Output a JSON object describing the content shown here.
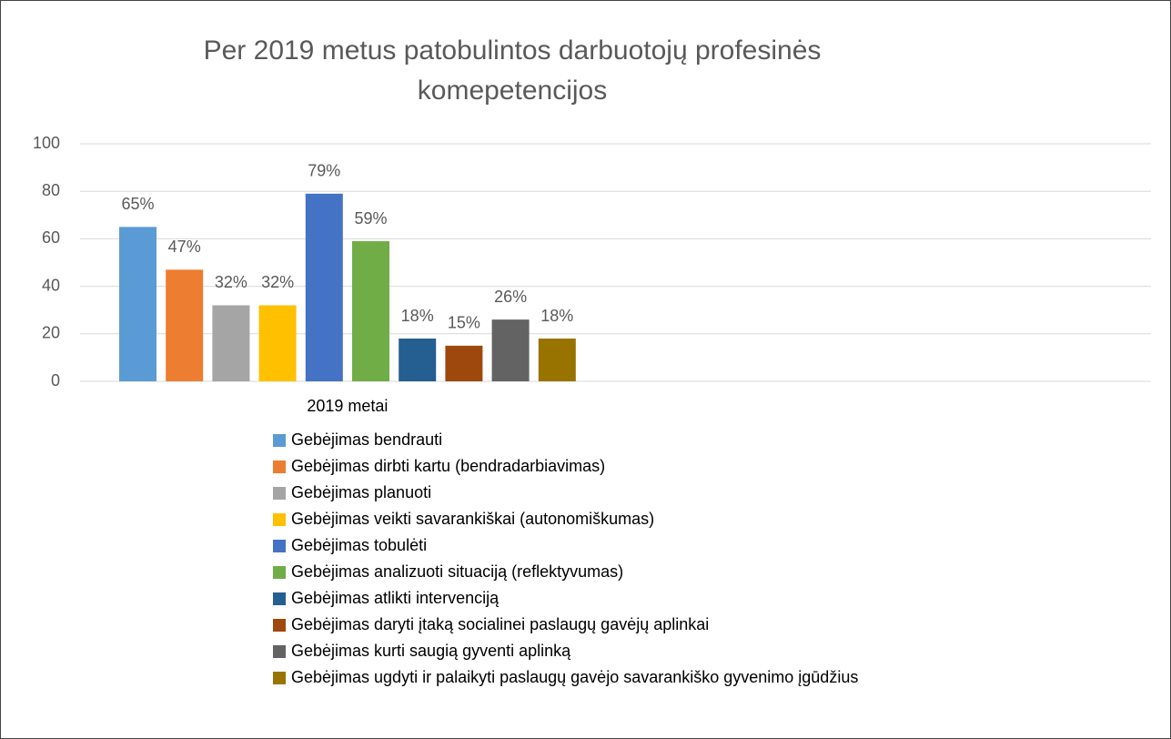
{
  "chart_data": {
    "type": "bar",
    "title": "Per 2019 metus patobulintos darbuotojų profesinės komepetencijos",
    "categories": [
      "2019 metai"
    ],
    "series": [
      {
        "name": "Gebėjimas bendrauti",
        "color": "#5b9bd5",
        "values": [
          65
        ],
        "value_labels": [
          "65%"
        ]
      },
      {
        "name": "Gebėjimas dirbti kartu (bendradarbiavimas)",
        "color": "#ed7d31",
        "values": [
          47
        ],
        "value_labels": [
          "47%"
        ]
      },
      {
        "name": "Gebėjimas planuoti",
        "color": "#a5a5a5",
        "values": [
          32
        ],
        "value_labels": [
          "32%"
        ]
      },
      {
        "name": "Gebėjimas veikti savarankiškai (autonomiškumas)",
        "color": "#ffc000",
        "values": [
          32
        ],
        "value_labels": [
          "32%"
        ]
      },
      {
        "name": "Gebėjimas tobulėti",
        "color": "#4472c4",
        "values": [
          79
        ],
        "value_labels": [
          "79%"
        ]
      },
      {
        "name": "Gebėjimas analizuoti situaciją (reflektyvumas)",
        "color": "#70ad47",
        "values": [
          59
        ],
        "value_labels": [
          "59%"
        ]
      },
      {
        "name": "Gebėjimas atlikti intervenciją",
        "color": "#255e91",
        "values": [
          18
        ],
        "value_labels": [
          "18%"
        ]
      },
      {
        "name": "Gebėjimas daryti įtaką socialinei paslaugų gavėjų  aplinkai",
        "color": "#9e480e",
        "values": [
          15
        ],
        "value_labels": [
          "15%"
        ]
      },
      {
        "name": "Gebėjimas kurti saugią gyventi aplinką",
        "color": "#636363",
        "values": [
          26
        ],
        "value_labels": [
          "26%"
        ]
      },
      {
        "name": "Gebėjimas ugdyti ir palaikyti paslaugų gavėjo savarankiško gyvenimo įgūdžius",
        "color": "#997300",
        "values": [
          18
        ],
        "value_labels": [
          "18%"
        ]
      }
    ],
    "ylim": [
      0,
      100
    ],
    "yticks": [
      0,
      20,
      40,
      60,
      80,
      100
    ],
    "grid": true,
    "legend": "bottom"
  }
}
